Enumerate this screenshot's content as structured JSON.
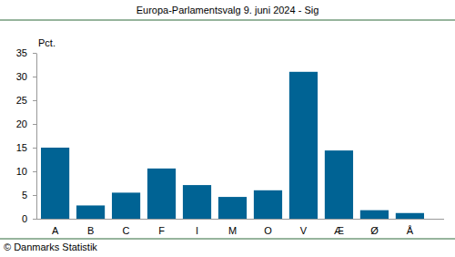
{
  "chart_data": {
    "type": "bar",
    "title": "Europa-Parlamentsvalg 9. juni 2024 - Sig",
    "y_label": "Pct.",
    "source": "© Danmarks Statistik",
    "categories": [
      "A",
      "B",
      "C",
      "F",
      "I",
      "M",
      "O",
      "V",
      "Æ",
      "Ø",
      "Å"
    ],
    "values": [
      15.0,
      2.8,
      5.5,
      10.6,
      7.1,
      4.6,
      6.0,
      31.0,
      14.4,
      1.8,
      1.2
    ],
    "color": "#006394",
    "ylim": [
      0,
      35
    ],
    "yticks": [
      0,
      5,
      10,
      15,
      20,
      25,
      30,
      35
    ],
    "grid": false
  }
}
